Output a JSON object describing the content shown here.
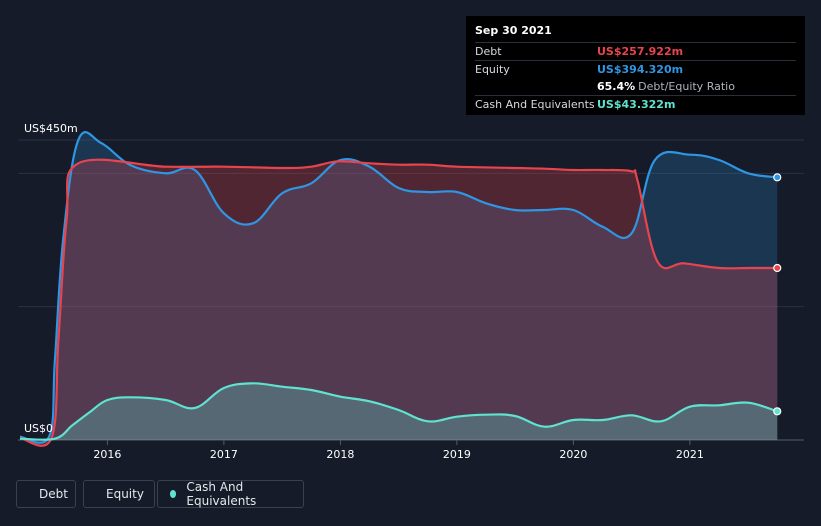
{
  "tooltip": {
    "date": "Sep 30 2021",
    "debt_label": "Debt",
    "debt_value": "US$257.922m",
    "equity_label": "Equity",
    "equity_value": "US$394.320m",
    "ratio_value": "65.4%",
    "ratio_label": "Debt/Equity Ratio",
    "cash_label": "Cash And Equivalents",
    "cash_value": "US$43.322m"
  },
  "legend": {
    "debt": "Debt",
    "equity": "Equity",
    "cash": "Cash And Equivalents"
  },
  "colors": {
    "debt": "#e8444e",
    "equity": "#2f96e4",
    "cash": "#5fe2d0",
    "background": "#151b28"
  },
  "chart_data": {
    "type": "area",
    "ylabel_top": "US$450m",
    "ylabel_bottom": "US$0",
    "ylim": [
      0,
      450
    ],
    "xlim": [
      2015.25,
      2021.75
    ],
    "x_ticks": [
      "2016",
      "2017",
      "2018",
      "2019",
      "2020",
      "2021"
    ],
    "grid": "horizontal",
    "series": [
      {
        "name": "Debt",
        "x": [
          2015.25,
          2015.52,
          2015.58,
          2015.65,
          2015.75,
          2016.5,
          2017.0,
          2017.5,
          2017.75,
          2017.98,
          2018.25,
          2018.5,
          2018.75,
          2019.0,
          2019.5,
          2019.75,
          2020.0,
          2020.25,
          2020.5,
          2020.55,
          2020.72,
          2020.95,
          2021.25,
          2021.5,
          2021.75
        ],
        "values": [
          3,
          3,
          150,
          330,
          415,
          410,
          410,
          408,
          410,
          418,
          415,
          413,
          413,
          410,
          408,
          407,
          405,
          405,
          403,
          390,
          268,
          265,
          258,
          258,
          258
        ]
      },
      {
        "name": "Equity",
        "x": [
          2015.25,
          2015.5,
          2015.55,
          2015.62,
          2015.75,
          2015.95,
          2016.2,
          2016.5,
          2016.75,
          2017.0,
          2017.25,
          2017.5,
          2017.75,
          2018.0,
          2018.25,
          2018.5,
          2018.75,
          2019.0,
          2019.25,
          2019.5,
          2019.75,
          2020.0,
          2020.25,
          2020.5,
          2020.7,
          2021.0,
          2021.25,
          2021.5,
          2021.75
        ],
        "values": [
          5,
          5,
          120,
          300,
          450,
          445,
          412,
          400,
          405,
          340,
          325,
          370,
          385,
          420,
          410,
          378,
          372,
          372,
          355,
          345,
          345,
          345,
          320,
          310,
          420,
          428,
          420,
          400,
          394
        ]
      },
      {
        "name": "Cash And Equivalents",
        "x": [
          2015.25,
          2015.55,
          2015.7,
          2015.85,
          2016.0,
          2016.2,
          2016.5,
          2016.75,
          2017.0,
          2017.25,
          2017.5,
          2017.75,
          2018.0,
          2018.25,
          2018.5,
          2018.75,
          2019.0,
          2019.25,
          2019.5,
          2019.75,
          2020.0,
          2020.25,
          2020.5,
          2020.75,
          2021.0,
          2021.25,
          2021.5,
          2021.75
        ],
        "values": [
          2,
          2,
          22,
          42,
          60,
          64,
          60,
          48,
          78,
          85,
          80,
          75,
          65,
          58,
          45,
          28,
          35,
          38,
          36,
          20,
          30,
          30,
          37,
          28,
          50,
          52,
          56,
          43
        ]
      }
    ]
  }
}
